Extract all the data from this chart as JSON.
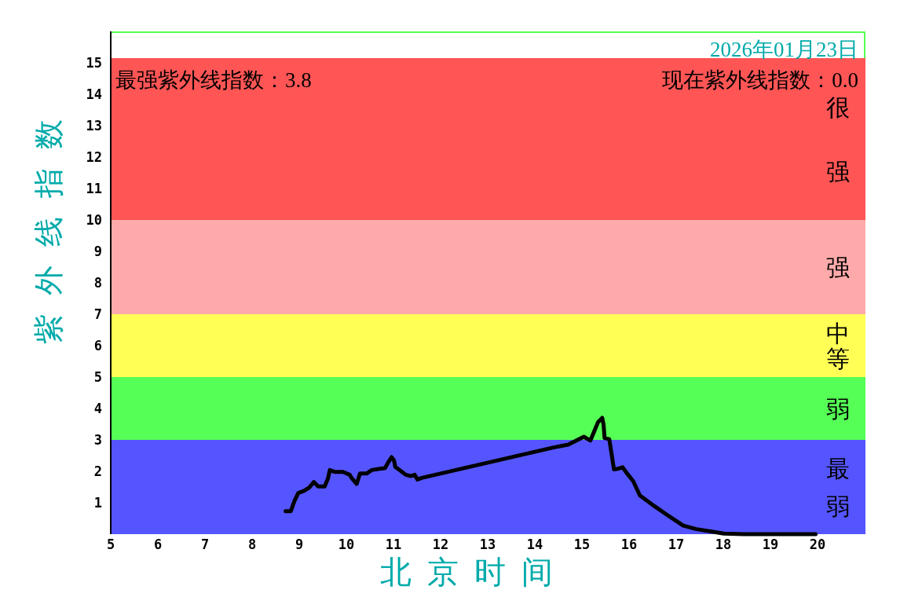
{
  "chart_data": {
    "type": "line",
    "xlabel": "北京时间",
    "ylabel": "紫外线指数",
    "annotations": [
      "2026年01月23日",
      "最强紫外线指数：3.8",
      "现在紫外线指数：0.0"
    ],
    "xlim": [
      5,
      21
    ],
    "ylim": [
      0,
      16
    ],
    "xticks": [
      5,
      6,
      7,
      8,
      9,
      10,
      11,
      12,
      13,
      14,
      15,
      16,
      17,
      18,
      19,
      20
    ],
    "yticks": [
      1,
      2,
      3,
      4,
      5,
      6,
      7,
      8,
      9,
      10,
      11,
      12,
      13,
      14,
      15
    ],
    "bands": [
      {
        "axis": "y",
        "from": 10,
        "to": 15.15,
        "label": "很强",
        "color": "#ff5555"
      },
      {
        "axis": "y",
        "from": 7,
        "to": 10,
        "label": "强",
        "color": "#ffaaaa"
      },
      {
        "axis": "y",
        "from": 5,
        "to": 7,
        "label": "中等",
        "color": "#ffff55"
      },
      {
        "axis": "y",
        "from": 3,
        "to": 5,
        "label": "弱",
        "color": "#55ff55"
      },
      {
        "axis": "y",
        "from": 0,
        "to": 3,
        "label": "最弱",
        "color": "#5555ff"
      }
    ],
    "series": [
      {
        "color": "#000000",
        "x": [
          8.71,
          8.82,
          8.9,
          8.98,
          9.1,
          9.21,
          9.31,
          9.4,
          9.54,
          9.61,
          9.65,
          9.76,
          9.93,
          10.07,
          10.12,
          10.22,
          10.29,
          10.43,
          10.54,
          10.71,
          10.82,
          10.9,
          10.96,
          11.01,
          11.04,
          11.15,
          11.26,
          11.37,
          11.45,
          11.51,
          11.6,
          14.4,
          14.71,
          15.04,
          15.18,
          15.26,
          15.34,
          15.43,
          15.46,
          15.48,
          15.58,
          15.62,
          15.68,
          15.76,
          15.86,
          15.98,
          16.09,
          16.23,
          16.54,
          16.82,
          17.15,
          17.43,
          17.76,
          18.01,
          18.43,
          19.96
        ],
        "values": [
          0.73,
          0.73,
          1.06,
          1.31,
          1.38,
          1.48,
          1.66,
          1.52,
          1.52,
          1.77,
          2.04,
          1.98,
          1.98,
          1.89,
          1.77,
          1.6,
          1.93,
          1.93,
          2.04,
          2.08,
          2.1,
          2.31,
          2.45,
          2.35,
          2.14,
          2.02,
          1.89,
          1.85,
          1.89,
          1.74,
          1.79,
          2.76,
          2.85,
          3.1,
          2.98,
          3.27,
          3.56,
          3.7,
          3.48,
          3.06,
          3.02,
          2.64,
          2.06,
          2.08,
          2.13,
          1.89,
          1.68,
          1.23,
          0.89,
          0.6,
          0.27,
          0.16,
          0.08,
          0.02,
          0,
          0
        ]
      }
    ]
  }
}
